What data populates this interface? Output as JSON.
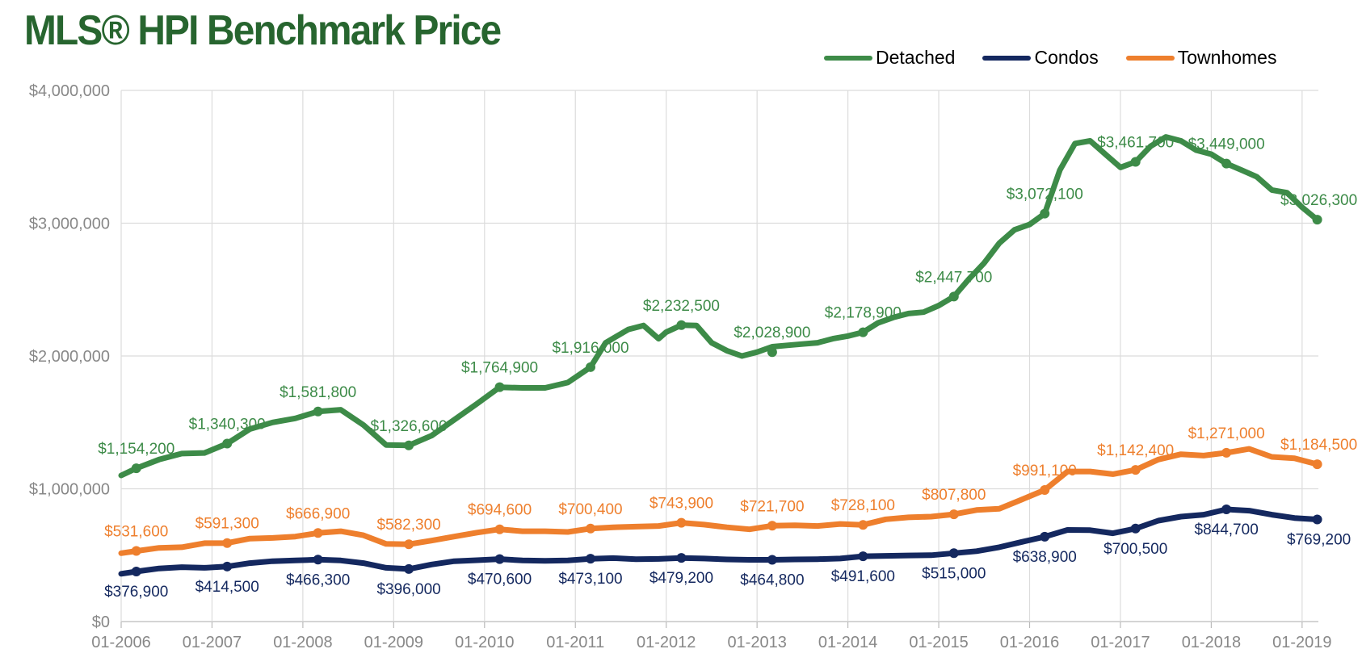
{
  "title": "MLS® HPI Benchmark Price",
  "colors": {
    "title": "#27652f",
    "detached": "#3d8b48",
    "condos": "#14285f",
    "townhomes": "#ee7f2d",
    "axis_text": "#888888",
    "grid": "#dcdcdc"
  },
  "chart_data": {
    "type": "line",
    "title": "MLS® HPI Benchmark Price",
    "xlabel": "",
    "ylabel": "",
    "ylim": [
      0,
      4000000
    ],
    "y_ticks": [
      0,
      1000000,
      2000000,
      3000000,
      4000000
    ],
    "y_tick_labels": [
      "$0",
      "$1,000,000",
      "$2,000,000",
      "$3,000,000",
      "$4,000,000"
    ],
    "x_ticks": [
      "2006-01",
      "2007-01",
      "2008-01",
      "2009-01",
      "2010-01",
      "2011-01",
      "2012-01",
      "2013-01",
      "2014-01",
      "2015-01",
      "2016-01",
      "2017-01",
      "2018-01",
      "2019-01"
    ],
    "x_tick_labels": [
      "01-2006",
      "01-2007",
      "01-2008",
      "01-2009",
      "01-2010",
      "01-2011",
      "01-2012",
      "01-2013",
      "01-2014",
      "01-2015",
      "01-2016",
      "01-2017",
      "01-2018",
      "01-2019"
    ],
    "xlim": [
      "2006-01",
      "2019-03"
    ],
    "grid": true,
    "legend_position": "top-right",
    "series": [
      {
        "name": "Detached",
        "color": "#3d8b48",
        "label_position": "above",
        "x": [
          "2006-01",
          "2006-03",
          "2006-06",
          "2006-09",
          "2006-12",
          "2007-03",
          "2007-06",
          "2007-09",
          "2007-12",
          "2008-03",
          "2008-06",
          "2008-09",
          "2008-12",
          "2009-03",
          "2009-06",
          "2009-09",
          "2009-12",
          "2010-03",
          "2010-06",
          "2010-09",
          "2010-12",
          "2011-03",
          "2011-05",
          "2011-08",
          "2011-10",
          "2011-12",
          "2012-01",
          "2012-03",
          "2012-05",
          "2012-07",
          "2012-09",
          "2012-11",
          "2013-01",
          "2013-03",
          "2013-05",
          "2013-07",
          "2013-09",
          "2013-11",
          "2014-01",
          "2014-03",
          "2014-05",
          "2014-07",
          "2014-09",
          "2014-11",
          "2015-01",
          "2015-03",
          "2015-05",
          "2015-07",
          "2015-09",
          "2015-11",
          "2016-01",
          "2016-03",
          "2016-05",
          "2016-07",
          "2016-09",
          "2016-11",
          "2017-01",
          "2017-03",
          "2017-05",
          "2017-07",
          "2017-09",
          "2017-11",
          "2018-01",
          "2018-03",
          "2018-05",
          "2018-07",
          "2018-09",
          "2018-11",
          "2019-01",
          "2019-03"
        ],
        "values": [
          1100000,
          1154200,
          1220000,
          1265000,
          1270000,
          1340300,
          1450000,
          1500000,
          1530000,
          1581800,
          1595000,
          1480000,
          1330000,
          1326600,
          1400000,
          1520000,
          1640000,
          1764900,
          1760000,
          1760000,
          1800000,
          1916000,
          2100000,
          2200000,
          2230000,
          2130000,
          2180000,
          2232500,
          2230000,
          2100000,
          2040000,
          2000000,
          2028900,
          2070000,
          2080000,
          2090000,
          2100000,
          2130000,
          2150000,
          2178900,
          2250000,
          2290000,
          2320000,
          2330000,
          2380000,
          2447700,
          2580000,
          2700000,
          2850000,
          2950000,
          2990000,
          3072100,
          3400000,
          3600000,
          3620000,
          3520000,
          3420000,
          3461700,
          3580000,
          3650000,
          3620000,
          3550000,
          3520000,
          3449000,
          3400000,
          3350000,
          3250000,
          3230000,
          3120000,
          3026300
        ],
        "labeled_points": [
          {
            "x": "2006-03",
            "value": 1154200,
            "label": "$1,154,200"
          },
          {
            "x": "2007-03",
            "value": 1340300,
            "label": "$1,340,300"
          },
          {
            "x": "2008-03",
            "value": 1581800,
            "label": "$1,581,800"
          },
          {
            "x": "2009-03",
            "value": 1326600,
            "label": "$1,326,600"
          },
          {
            "x": "2010-03",
            "value": 1764900,
            "label": "$1,764,900"
          },
          {
            "x": "2011-03",
            "value": 1916000,
            "label": "$1,916,000"
          },
          {
            "x": "2012-03",
            "value": 2232500,
            "label": "$2,232,500"
          },
          {
            "x": "2013-03",
            "value": 2028900,
            "label": "$2,028,900"
          },
          {
            "x": "2014-03",
            "value": 2178900,
            "label": "$2,178,900"
          },
          {
            "x": "2015-03",
            "value": 2447700,
            "label": "$2,447,700"
          },
          {
            "x": "2016-03",
            "value": 3072100,
            "label": "$3,072,100"
          },
          {
            "x": "2017-03",
            "value": 3461700,
            "label": "$3,461,700"
          },
          {
            "x": "2018-03",
            "value": 3449000,
            "label": "$3,449,000"
          },
          {
            "x": "2019-03",
            "value": 3026300,
            "label": "$3,026,300"
          }
        ]
      },
      {
        "name": "Condos",
        "color": "#14285f",
        "label_position": "below",
        "x": [
          "2006-01",
          "2006-03",
          "2006-06",
          "2006-09",
          "2006-12",
          "2007-03",
          "2007-06",
          "2007-09",
          "2007-12",
          "2008-03",
          "2008-06",
          "2008-09",
          "2008-12",
          "2009-03",
          "2009-06",
          "2009-09",
          "2009-12",
          "2010-03",
          "2010-06",
          "2010-09",
          "2010-12",
          "2011-03",
          "2011-06",
          "2011-09",
          "2011-12",
          "2012-03",
          "2012-06",
          "2012-09",
          "2012-12",
          "2013-03",
          "2013-06",
          "2013-09",
          "2013-12",
          "2014-03",
          "2014-06",
          "2014-09",
          "2014-12",
          "2015-03",
          "2015-06",
          "2015-09",
          "2015-12",
          "2016-03",
          "2016-06",
          "2016-09",
          "2016-12",
          "2017-03",
          "2017-06",
          "2017-09",
          "2017-12",
          "2018-03",
          "2018-06",
          "2018-09",
          "2018-12",
          "2019-03"
        ],
        "values": [
          360000,
          376900,
          400000,
          410000,
          405000,
          414500,
          440000,
          455000,
          460000,
          466300,
          460000,
          440000,
          405000,
          396000,
          430000,
          455000,
          462000,
          470600,
          460000,
          458000,
          460000,
          473100,
          478000,
          470000,
          472000,
          479200,
          475000,
          468000,
          465000,
          464800,
          468000,
          470000,
          475000,
          491600,
          495000,
          498000,
          500000,
          515000,
          530000,
          560000,
          600000,
          638900,
          690000,
          688000,
          665000,
          700500,
          760000,
          790000,
          805000,
          844700,
          835000,
          805000,
          780000,
          769200
        ],
        "labeled_points": [
          {
            "x": "2006-03",
            "value": 376900,
            "label": "$376,900"
          },
          {
            "x": "2007-03",
            "value": 414500,
            "label": "$414,500"
          },
          {
            "x": "2008-03",
            "value": 466300,
            "label": "$466,300"
          },
          {
            "x": "2009-03",
            "value": 396000,
            "label": "$396,000"
          },
          {
            "x": "2010-03",
            "value": 470600,
            "label": "$470,600"
          },
          {
            "x": "2011-03",
            "value": 473100,
            "label": "$473,100"
          },
          {
            "x": "2012-03",
            "value": 479200,
            "label": "$479,200"
          },
          {
            "x": "2013-03",
            "value": 464800,
            "label": "$464,800"
          },
          {
            "x": "2014-03",
            "value": 491600,
            "label": "$491,600"
          },
          {
            "x": "2015-03",
            "value": 515000,
            "label": "$515,000"
          },
          {
            "x": "2016-03",
            "value": 638900,
            "label": "$638,900"
          },
          {
            "x": "2017-03",
            "value": 700500,
            "label": "$700,500"
          },
          {
            "x": "2018-03",
            "value": 844700,
            "label": "$844,700"
          },
          {
            "x": "2019-03",
            "value": 769200,
            "label": "$769,200"
          }
        ]
      },
      {
        "name": "Townhomes",
        "color": "#ee7f2d",
        "label_position": "above",
        "x": [
          "2006-01",
          "2006-03",
          "2006-06",
          "2006-09",
          "2006-12",
          "2007-03",
          "2007-06",
          "2007-09",
          "2007-12",
          "2008-03",
          "2008-06",
          "2008-09",
          "2008-12",
          "2009-03",
          "2009-06",
          "2009-09",
          "2009-12",
          "2010-03",
          "2010-06",
          "2010-09",
          "2010-12",
          "2011-03",
          "2011-06",
          "2011-09",
          "2011-12",
          "2012-03",
          "2012-06",
          "2012-09",
          "2012-12",
          "2013-03",
          "2013-06",
          "2013-09",
          "2013-12",
          "2014-03",
          "2014-06",
          "2014-09",
          "2014-12",
          "2015-03",
          "2015-06",
          "2015-09",
          "2015-12",
          "2016-03",
          "2016-06",
          "2016-09",
          "2016-12",
          "2017-03",
          "2017-06",
          "2017-09",
          "2017-12",
          "2018-03",
          "2018-06",
          "2018-09",
          "2018-12",
          "2019-03"
        ],
        "values": [
          515000,
          531600,
          555000,
          560000,
          590000,
          591300,
          625000,
          630000,
          640000,
          666900,
          680000,
          650000,
          585000,
          582300,
          610000,
          640000,
          670000,
          694600,
          680000,
          680000,
          675000,
          700400,
          710000,
          715000,
          720000,
          743900,
          730000,
          710000,
          695000,
          721700,
          725000,
          720000,
          735000,
          728100,
          770000,
          785000,
          790000,
          807800,
          840000,
          850000,
          920000,
          991100,
          1130000,
          1130000,
          1110000,
          1142400,
          1220000,
          1260000,
          1250000,
          1271000,
          1300000,
          1240000,
          1230000,
          1184500
        ],
        "labeled_points": [
          {
            "x": "2006-03",
            "value": 531600,
            "label": "$531,600"
          },
          {
            "x": "2007-03",
            "value": 591300,
            "label": "$591,300"
          },
          {
            "x": "2008-03",
            "value": 666900,
            "label": "$666,900"
          },
          {
            "x": "2009-03",
            "value": 582300,
            "label": "$582,300"
          },
          {
            "x": "2010-03",
            "value": 694600,
            "label": "$694,600"
          },
          {
            "x": "2011-03",
            "value": 700400,
            "label": "$700,400"
          },
          {
            "x": "2012-03",
            "value": 743900,
            "label": "$743,900"
          },
          {
            "x": "2013-03",
            "value": 721700,
            "label": "$721,700"
          },
          {
            "x": "2014-03",
            "value": 728100,
            "label": "$728,100"
          },
          {
            "x": "2015-03",
            "value": 807800,
            "label": "$807,800"
          },
          {
            "x": "2016-03",
            "value": 991100,
            "label": "$991,100"
          },
          {
            "x": "2017-03",
            "value": 1142400,
            "label": "$1,142,400"
          },
          {
            "x": "2018-03",
            "value": 1271000,
            "label": "$1,271,000"
          },
          {
            "x": "2019-03",
            "value": 1184500,
            "label": "$1,184,500"
          }
        ]
      }
    ]
  }
}
